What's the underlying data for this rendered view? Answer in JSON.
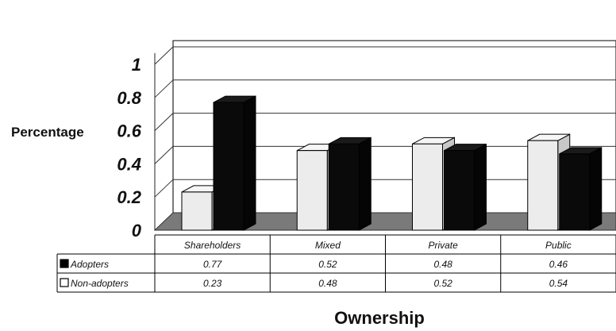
{
  "chart_data": {
    "type": "bar",
    "title": "",
    "xlabel": "Ownership",
    "ylabel": "Percentage",
    "ylim": [
      0,
      1
    ],
    "yticks": [
      "0",
      "0.2",
      "0.4",
      "0.6",
      "0.8",
      "1"
    ],
    "categories": [
      "Shareholders",
      "Mixed",
      "Private",
      "Public"
    ],
    "series": [
      {
        "name": "Adopters",
        "values": [
          0.77,
          0.52,
          0.48,
          0.46
        ],
        "display": [
          "0.77",
          "0.52",
          "0.48",
          "0.46"
        ],
        "color": "#0a0a0a"
      },
      {
        "name": "Non-adopters",
        "values": [
          0.23,
          0.48,
          0.52,
          0.54
        ],
        "display": [
          "0.23",
          "0.48",
          "0.52",
          "0.54"
        ],
        "color": "#ececec"
      }
    ],
    "grid": true,
    "legend": "data-table"
  }
}
